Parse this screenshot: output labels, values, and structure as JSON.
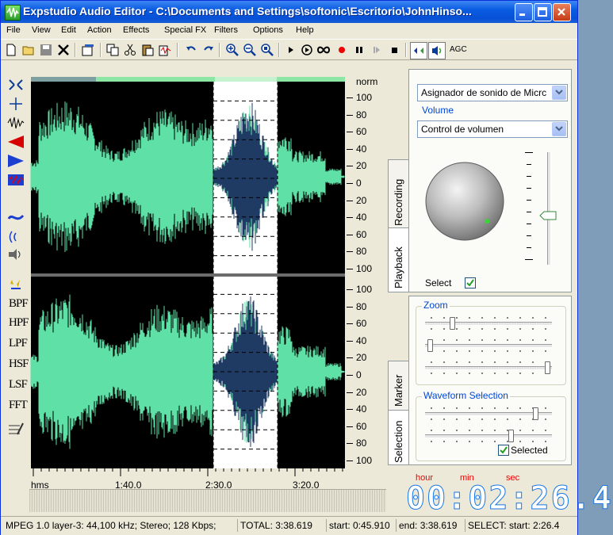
{
  "window": {
    "title": "Expstudio Audio Editor - C:\\Documents and Settings\\softonic\\Escritorio\\JohnHinso..."
  },
  "menu": [
    "File",
    "View",
    "Edit",
    "Action",
    "Effects",
    "Special FX",
    "Filters",
    "Options",
    "Help"
  ],
  "toolbar": {
    "icons": [
      "new-file-icon",
      "open-folder-icon",
      "save-icon",
      "delete-icon",
      "properties-icon",
      "copy-icon",
      "cut-icon",
      "paste-icon",
      "mix-paste-icon",
      "undo-icon",
      "redo-icon",
      "zoom-in-icon",
      "zoom-out-icon",
      "zoom-fit-icon",
      "play-icon",
      "play-loop-icon",
      "loop-icon",
      "record-icon",
      "pause-icon",
      "skip-icon",
      "stop-icon",
      "left-channel-icon",
      "right-channel-icon"
    ],
    "agc_label": "AGC"
  },
  "lefttools": {
    "icons": [
      "select-all-icon",
      "crosshair-icon",
      "waveform-icon",
      "fade-in-icon",
      "fade-out-icon",
      "normalize-icon",
      "reverse-icon",
      "echo-icon",
      "vibrato-icon",
      "noise-icon"
    ],
    "filters": [
      "BPF",
      "HPF",
      "LPF",
      "HSF",
      "LSF",
      "FFT"
    ],
    "bottom_icon": "insert-icon"
  },
  "scale": {
    "header": "norm",
    "top_channel": [
      "100",
      "80",
      "60",
      "40",
      "20",
      "0",
      "20",
      "40",
      "60",
      "80",
      "100"
    ],
    "bottom_channel": [
      "100",
      "80",
      "60",
      "40",
      "20",
      "0",
      "20",
      "40",
      "60",
      "80",
      "100"
    ]
  },
  "timeaxis": {
    "unit": "hms",
    "labels": [
      "1:40.0",
      "2:30.0",
      "3:20.0"
    ]
  },
  "panel": {
    "tabs_top": [
      "Recording",
      "Playback"
    ],
    "tabs_bottom": [
      "Marker",
      "Selection"
    ],
    "device_select": "Asignador de sonido de Micrc",
    "volume_group": "Volume",
    "volume_select": "Control de volumen",
    "select_label": "Select",
    "select_checked": true,
    "zoom_group": "Zoom",
    "zoom_sliders": [
      0.2,
      0.02,
      0.98
    ],
    "waveform_group": "Waveform Selection",
    "waveform_sliders": [
      0.88,
      0.68
    ],
    "selected_label": "Selected",
    "selected_checked": true,
    "volume_level": 0.42
  },
  "clock": {
    "hour_label": "hour",
    "min_label": "min",
    "sec_label": "sec",
    "digits": "00:02:26.4"
  },
  "status": {
    "format": "MPEG 1.0 layer-3: 44,100 kHz; Stereo; 128 Kbps;",
    "total": "TOTAL: 3:38.619",
    "start": "start: 0:45.910",
    "end": "end: 3:38.619",
    "select": "SELECT: start: 2:26.4"
  },
  "colors": {
    "wave": "#5ee0a6",
    "wave_selected": "#1f3a63",
    "selection_bg": "#ffffff",
    "background": "#000000"
  }
}
